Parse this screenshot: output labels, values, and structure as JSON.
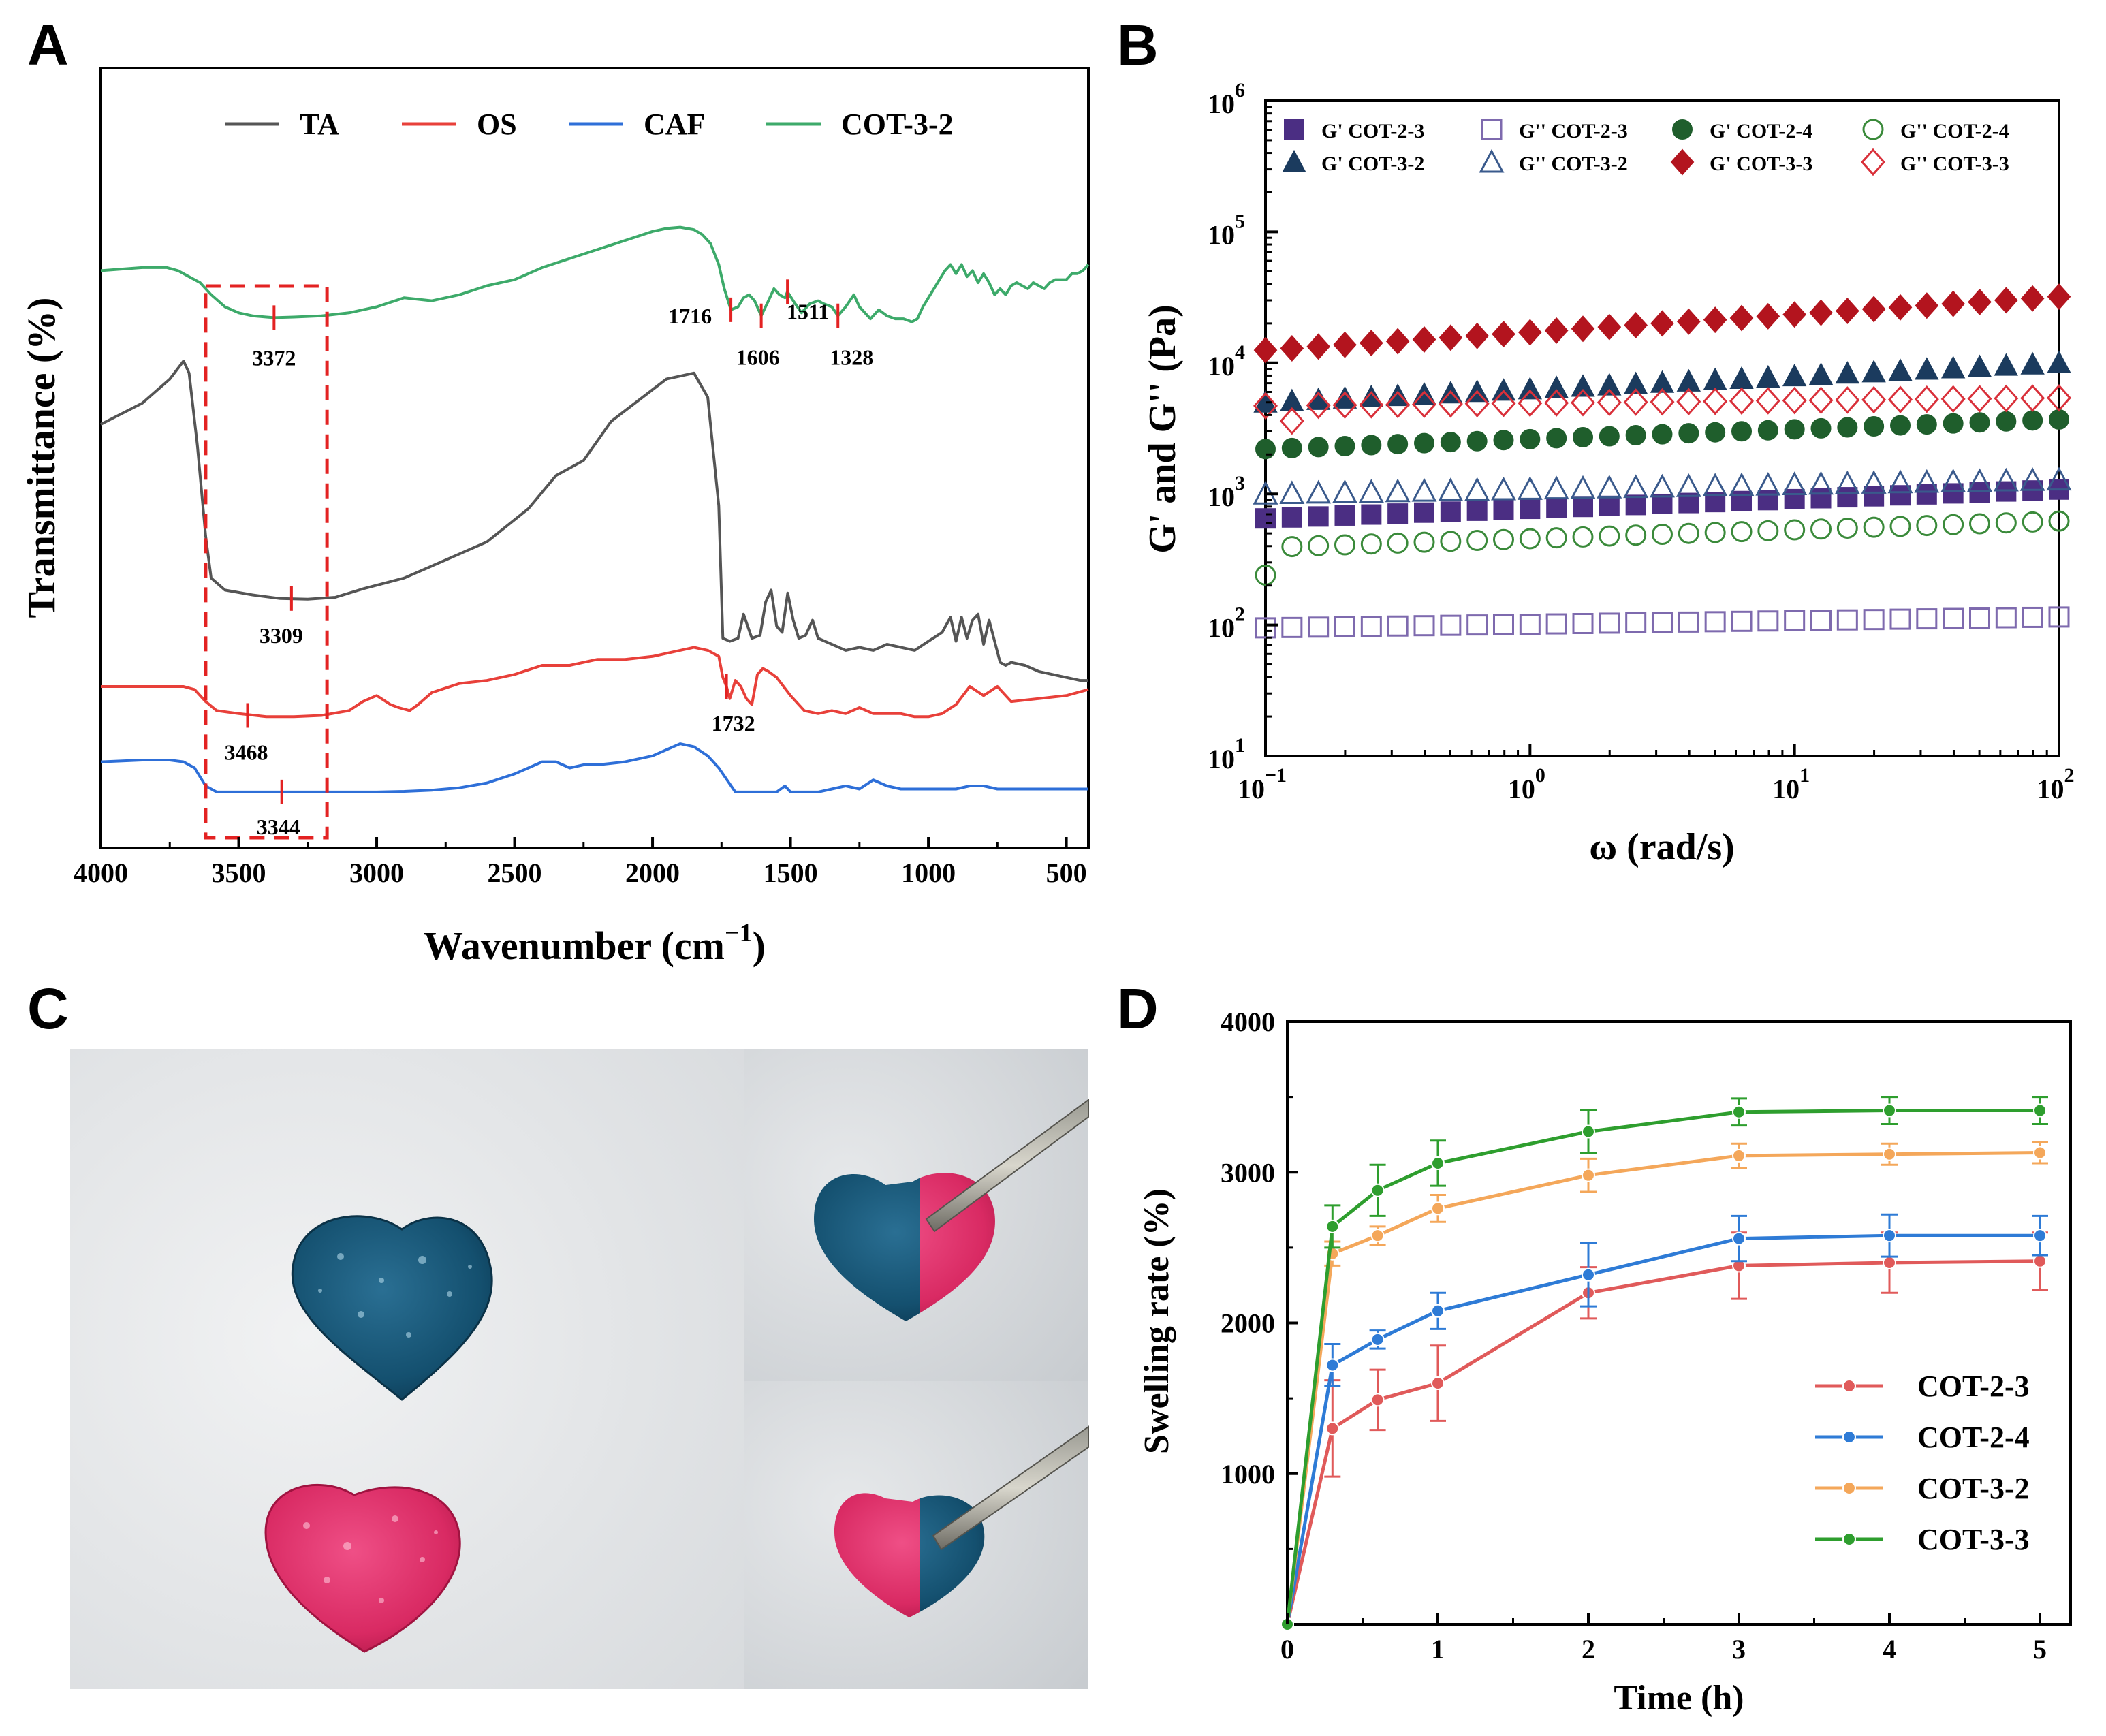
{
  "panels": {
    "A": "A",
    "B": "B",
    "C": "C",
    "D": "D"
  },
  "chart_data": [
    {
      "id": "A",
      "type": "line",
      "title": "",
      "xlabel": "Wavenumber (cm",
      "xlabel_sup": "−1",
      "xlabel_close": ")",
      "ylabel": "Transmittance (%)",
      "xlim": [
        4000,
        420
      ],
      "xticks": [
        "4000",
        "3500",
        "3000",
        "2500",
        "2000",
        "1500",
        "1000",
        "500"
      ],
      "xtick_values": [
        4000,
        3500,
        3000,
        2500,
        2000,
        1500,
        1000,
        500
      ],
      "y_units": "arbitrary offset transmittance (0 bottom – 100 top)",
      "series": [
        {
          "name": "TA",
          "color": "#555555",
          "x": [
            4000,
            3850,
            3750,
            3700,
            3680,
            3650,
            3620,
            3600,
            3550,
            3450,
            3350,
            3250,
            3150,
            3050,
            2900,
            2750,
            2600,
            2450,
            2350,
            2250,
            2150,
            2050,
            1950,
            1900,
            1850,
            1800,
            1760,
            1745,
            1720,
            1690,
            1670,
            1640,
            1610,
            1590,
            1570,
            1550,
            1530,
            1510,
            1490,
            1470,
            1445,
            1420,
            1400,
            1350,
            1300,
            1250,
            1200,
            1150,
            1100,
            1050,
            1000,
            950,
            920,
            900,
            880,
            860,
            840,
            820,
            800,
            780,
            760,
            740,
            720,
            700,
            650,
            600,
            550,
            500,
            450,
            420
          ],
          "values": [
            63.5,
            67,
            71,
            74,
            72,
            60,
            45,
            38,
            36,
            35.2,
            34.6,
            34.5,
            34.8,
            36.2,
            38,
            41,
            44,
            49.5,
            55,
            57.5,
            64,
            67.5,
            71,
            71.5,
            72,
            68,
            50,
            28,
            27.5,
            28,
            32,
            28,
            28.5,
            34,
            36,
            30,
            29,
            35.5,
            31,
            28,
            28.5,
            31,
            28,
            27,
            26,
            26.5,
            26,
            27,
            26.5,
            26,
            27.5,
            29,
            31.5,
            27.5,
            31.5,
            28,
            31,
            32,
            27,
            31,
            27.5,
            24,
            23.5,
            24,
            23.5,
            22.5,
            22,
            21.5,
            21,
            21
          ]
        },
        {
          "name": "OS",
          "color": "#E8403A",
          "x": [
            4000,
            3800,
            3700,
            3660,
            3620,
            3580,
            3500,
            3400,
            3300,
            3200,
            3100,
            3050,
            3000,
            2950,
            2920,
            2880,
            2850,
            2800,
            2700,
            2600,
            2500,
            2400,
            2300,
            2200,
            2100,
            2000,
            1900,
            1850,
            1800,
            1760,
            1745,
            1732,
            1720,
            1700,
            1680,
            1660,
            1640,
            1620,
            1600,
            1580,
            1550,
            1500,
            1450,
            1400,
            1350,
            1300,
            1250,
            1200,
            1150,
            1100,
            1050,
            1000,
            950,
            900,
            850,
            800,
            750,
            700,
            600,
            500,
            420
          ],
          "values": [
            20,
            20,
            20,
            19.5,
            17.5,
            16,
            15.5,
            15,
            15,
            15.2,
            16,
            17.5,
            18.5,
            17,
            16.5,
            16,
            17,
            19,
            20.5,
            21,
            22,
            23.5,
            23.5,
            24.5,
            24.5,
            25,
            26,
            26.5,
            26,
            25,
            21.5,
            20,
            18,
            21,
            20,
            18,
            17,
            22,
            23,
            22.5,
            21.5,
            18.5,
            16,
            15.5,
            16,
            15.5,
            16.5,
            15.5,
            15.5,
            15.5,
            15,
            15,
            15.5,
            17,
            20,
            18.5,
            20,
            17.5,
            18,
            18.5,
            19.5
          ]
        },
        {
          "name": "CAF",
          "color": "#2E6FD8",
          "x": [
            4000,
            3850,
            3750,
            3700,
            3660,
            3620,
            3580,
            3500,
            3400,
            3300,
            3200,
            3100,
            3000,
            2900,
            2800,
            2700,
            2600,
            2500,
            2450,
            2400,
            2350,
            2300,
            2250,
            2200,
            2100,
            2000,
            1950,
            1900,
            1850,
            1800,
            1760,
            1730,
            1700,
            1650,
            1600,
            1550,
            1520,
            1500,
            1450,
            1400,
            1350,
            1300,
            1250,
            1200,
            1150,
            1100,
            1000,
            900,
            850,
            800,
            750,
            700,
            600,
            500,
            420
          ],
          "values": [
            7.5,
            7.8,
            7.8,
            7.5,
            6.5,
            3.5,
            2.5,
            2.5,
            2.5,
            2.5,
            2.5,
            2.5,
            2.5,
            2.6,
            2.8,
            3.2,
            4,
            5.5,
            6.5,
            7.5,
            7.5,
            6.5,
            7,
            7,
            7.5,
            8.5,
            9.5,
            10.5,
            10,
            8.5,
            6.5,
            4.5,
            2.5,
            2.5,
            2.5,
            2.5,
            3.5,
            2.5,
            2.5,
            2.5,
            3,
            3.5,
            3,
            4.5,
            3.5,
            3,
            3,
            3,
            3.5,
            3.5,
            3,
            3,
            3,
            3,
            3
          ]
        },
        {
          "name": "COT-3-2",
          "color": "#3DAA6A",
          "x": [
            4000,
            3850,
            3760,
            3720,
            3680,
            3640,
            3600,
            3550,
            3500,
            3450,
            3400,
            3372,
            3300,
            3200,
            3100,
            3000,
            2900,
            2800,
            2700,
            2600,
            2500,
            2400,
            2300,
            2200,
            2100,
            2000,
            1950,
            1900,
            1850,
            1820,
            1790,
            1760,
            1740,
            1716,
            1690,
            1670,
            1650,
            1630,
            1606,
            1580,
            1560,
            1540,
            1520,
            1511,
            1490,
            1460,
            1430,
            1400,
            1380,
            1350,
            1328,
            1300,
            1270,
            1250,
            1230,
            1210,
            1180,
            1150,
            1120,
            1090,
            1060,
            1040,
            1020,
            1000,
            980,
            960,
            940,
            920,
            900,
            880,
            860,
            840,
            820,
            800,
            780,
            760,
            740,
            720,
            700,
            680,
            660,
            640,
            620,
            600,
            580,
            560,
            540,
            520,
            500,
            480,
            460,
            440,
            420
          ],
          "values": [
            89,
            89.5,
            89.5,
            89,
            88,
            87,
            85,
            83,
            82,
            81.5,
            81.3,
            81.2,
            81.3,
            81.5,
            82,
            83,
            84.5,
            84,
            85,
            86.5,
            87.5,
            89.5,
            91,
            92.5,
            94,
            95.5,
            96,
            96.2,
            95.8,
            95,
            93.5,
            90,
            86,
            82.5,
            83,
            84.5,
            85,
            84,
            81.5,
            84,
            86,
            85,
            84.5,
            85.5,
            84,
            82,
            83.5,
            84,
            83.5,
            83,
            81.5,
            83,
            85,
            83,
            82,
            81,
            82.5,
            81.5,
            81,
            81,
            80.5,
            81,
            83,
            84.5,
            86,
            87.5,
            89,
            90,
            88.5,
            90,
            88,
            89,
            87,
            88.5,
            87,
            85,
            86,
            85,
            86.5,
            87,
            86.5,
            86,
            87,
            86.5,
            86,
            87,
            87.5,
            87.5,
            87.5,
            88.5,
            88.5,
            89,
            90
          ]
        }
      ],
      "annotations": [
        {
          "label": "3372",
          "x": 3372,
          "series": "COT-3-2",
          "y": 81.2
        },
        {
          "label": "1716",
          "x": 1716,
          "series": "COT-3-2",
          "y": 82.5
        },
        {
          "label": "1606",
          "x": 1606,
          "series": "COT-3-2",
          "y": 81.5
        },
        {
          "label": "1511",
          "x": 1511,
          "series": "COT-3-2",
          "y": 85.5
        },
        {
          "label": "1328",
          "x": 1328,
          "series": "COT-3-2",
          "y": 81.5
        },
        {
          "label": "3309",
          "x": 3309,
          "series": "TA",
          "y": 34.6
        },
        {
          "label": "1732",
          "x": 1732,
          "series": "OS",
          "y": 20
        },
        {
          "label": "3468",
          "x": 3468,
          "series": "OS",
          "y": 15.2
        },
        {
          "label": "3344",
          "x": 3344,
          "series": "CAF",
          "y": 2.5
        }
      ],
      "highlight_box_x": [
        3620,
        3180
      ],
      "legend": [
        "TA",
        "OS",
        "CAF",
        "COT-3-2"
      ],
      "legend_position": "top"
    },
    {
      "id": "B",
      "type": "scatter",
      "xlabel": "ω (rad/s)",
      "ylabel": "G' and G'' (Pa)",
      "xscale": "log",
      "yscale": "log",
      "xlim": [
        0.1,
        100
      ],
      "ylim": [
        10,
        1000000
      ],
      "xticks": [
        {
          "base": "10",
          "exp": "−1",
          "v": 0.1
        },
        {
          "base": "10",
          "exp": "0",
          "v": 1
        },
        {
          "base": "10",
          "exp": "1",
          "v": 10
        },
        {
          "base": "10",
          "exp": "2",
          "v": 100
        }
      ],
      "yticks": [
        {
          "base": "10",
          "exp": "1",
          "v": 10
        },
        {
          "base": "10",
          "exp": "2",
          "v": 100
        },
        {
          "base": "10",
          "exp": "3",
          "v": 1000
        },
        {
          "base": "10",
          "exp": "4",
          "v": 10000
        },
        {
          "base": "10",
          "exp": "5",
          "v": 100000
        },
        {
          "base": "10",
          "exp": "6",
          "v": 1000000
        }
      ],
      "x": [
        0.1,
        0.1259,
        0.1585,
        0.1995,
        0.2512,
        0.3162,
        0.3981,
        0.5012,
        0.631,
        0.7943,
        1,
        1.259,
        1.585,
        1.995,
        2.512,
        3.162,
        3.981,
        5.012,
        6.31,
        7.943,
        10,
        12.59,
        15.85,
        19.95,
        25.12,
        31.62,
        39.81,
        50.12,
        63.1,
        79.43,
        100
      ],
      "series": [
        {
          "name": "G' COT-2-3",
          "color": "#4B2E83",
          "marker": "square",
          "filled": true,
          "start_y": 650,
          "end_y": 1080
        },
        {
          "name": "G'' COT-2-3",
          "color": "#7E6AAE",
          "marker": "square",
          "filled": false,
          "start_y": 95,
          "end_y": 115
        },
        {
          "name": "G' COT-2-4",
          "color": "#1F5E2C",
          "marker": "circle",
          "filled": true,
          "start_y": 2200,
          "end_y": 3700
        },
        {
          "name": "G'' COT-2-4",
          "color": "#3A8A3A",
          "marker": "circle",
          "filled": false,
          "start_y": 390,
          "end_y": 620,
          "first_y": 240
        },
        {
          "name": "G' COT-3-2",
          "color": "#1B3B5E",
          "marker": "triangle",
          "filled": true,
          "start_y": 5000,
          "end_y": 10000
        },
        {
          "name": "G'' COT-3-2",
          "color": "#3A5A8C",
          "marker": "triangle",
          "filled": false,
          "start_y": 1000,
          "end_y": 1280
        },
        {
          "name": "G' COT-3-3",
          "color": "#B3141E",
          "marker": "diamond",
          "filled": true,
          "start_y": 12500,
          "end_y": 32000
        },
        {
          "name": "G'' COT-3-3",
          "color": "#D9303A",
          "marker": "diamond",
          "filled": false,
          "start_y": 4700,
          "end_y": 5400,
          "first_y": 4700,
          "second_y": 3600
        }
      ],
      "legend_position": "top"
    },
    {
      "id": "D",
      "type": "line",
      "xlabel": "Time (h)",
      "ylabel": "Swelling rate (%)",
      "xlim": [
        0,
        5
      ],
      "ylim": [
        0,
        4000
      ],
      "xticks": [
        "0",
        "1",
        "2",
        "3",
        "4",
        "5"
      ],
      "yticks": [
        "1000",
        "2000",
        "3000",
        "4000"
      ],
      "x": [
        0,
        0.3,
        0.6,
        1,
        2,
        3,
        4,
        5
      ],
      "series": [
        {
          "name": "COT-2-3",
          "color": "#E05A5A",
          "values": [
            0,
            1300,
            1490,
            1600,
            2200,
            2380,
            2400,
            2410
          ],
          "errors": [
            0,
            320,
            200,
            250,
            170,
            220,
            200,
            190
          ]
        },
        {
          "name": "COT-2-4",
          "color": "#2E7BD6",
          "values": [
            0,
            1720,
            1890,
            2080,
            2320,
            2560,
            2580,
            2580
          ],
          "errors": [
            0,
            140,
            60,
            120,
            210,
            150,
            140,
            130
          ]
        },
        {
          "name": "COT-3-2",
          "color": "#F4A75A",
          "values": [
            0,
            2460,
            2580,
            2760,
            2980,
            3110,
            3120,
            3130
          ],
          "errors": [
            0,
            80,
            60,
            90,
            110,
            80,
            70,
            70
          ]
        },
        {
          "name": "COT-3-3",
          "color": "#2E9E2E",
          "values": [
            0,
            2640,
            2880,
            3060,
            3270,
            3400,
            3410,
            3410
          ],
          "errors": [
            0,
            140,
            170,
            150,
            140,
            90,
            90,
            90
          ]
        }
      ],
      "legend_position": "bottom-right"
    }
  ]
}
